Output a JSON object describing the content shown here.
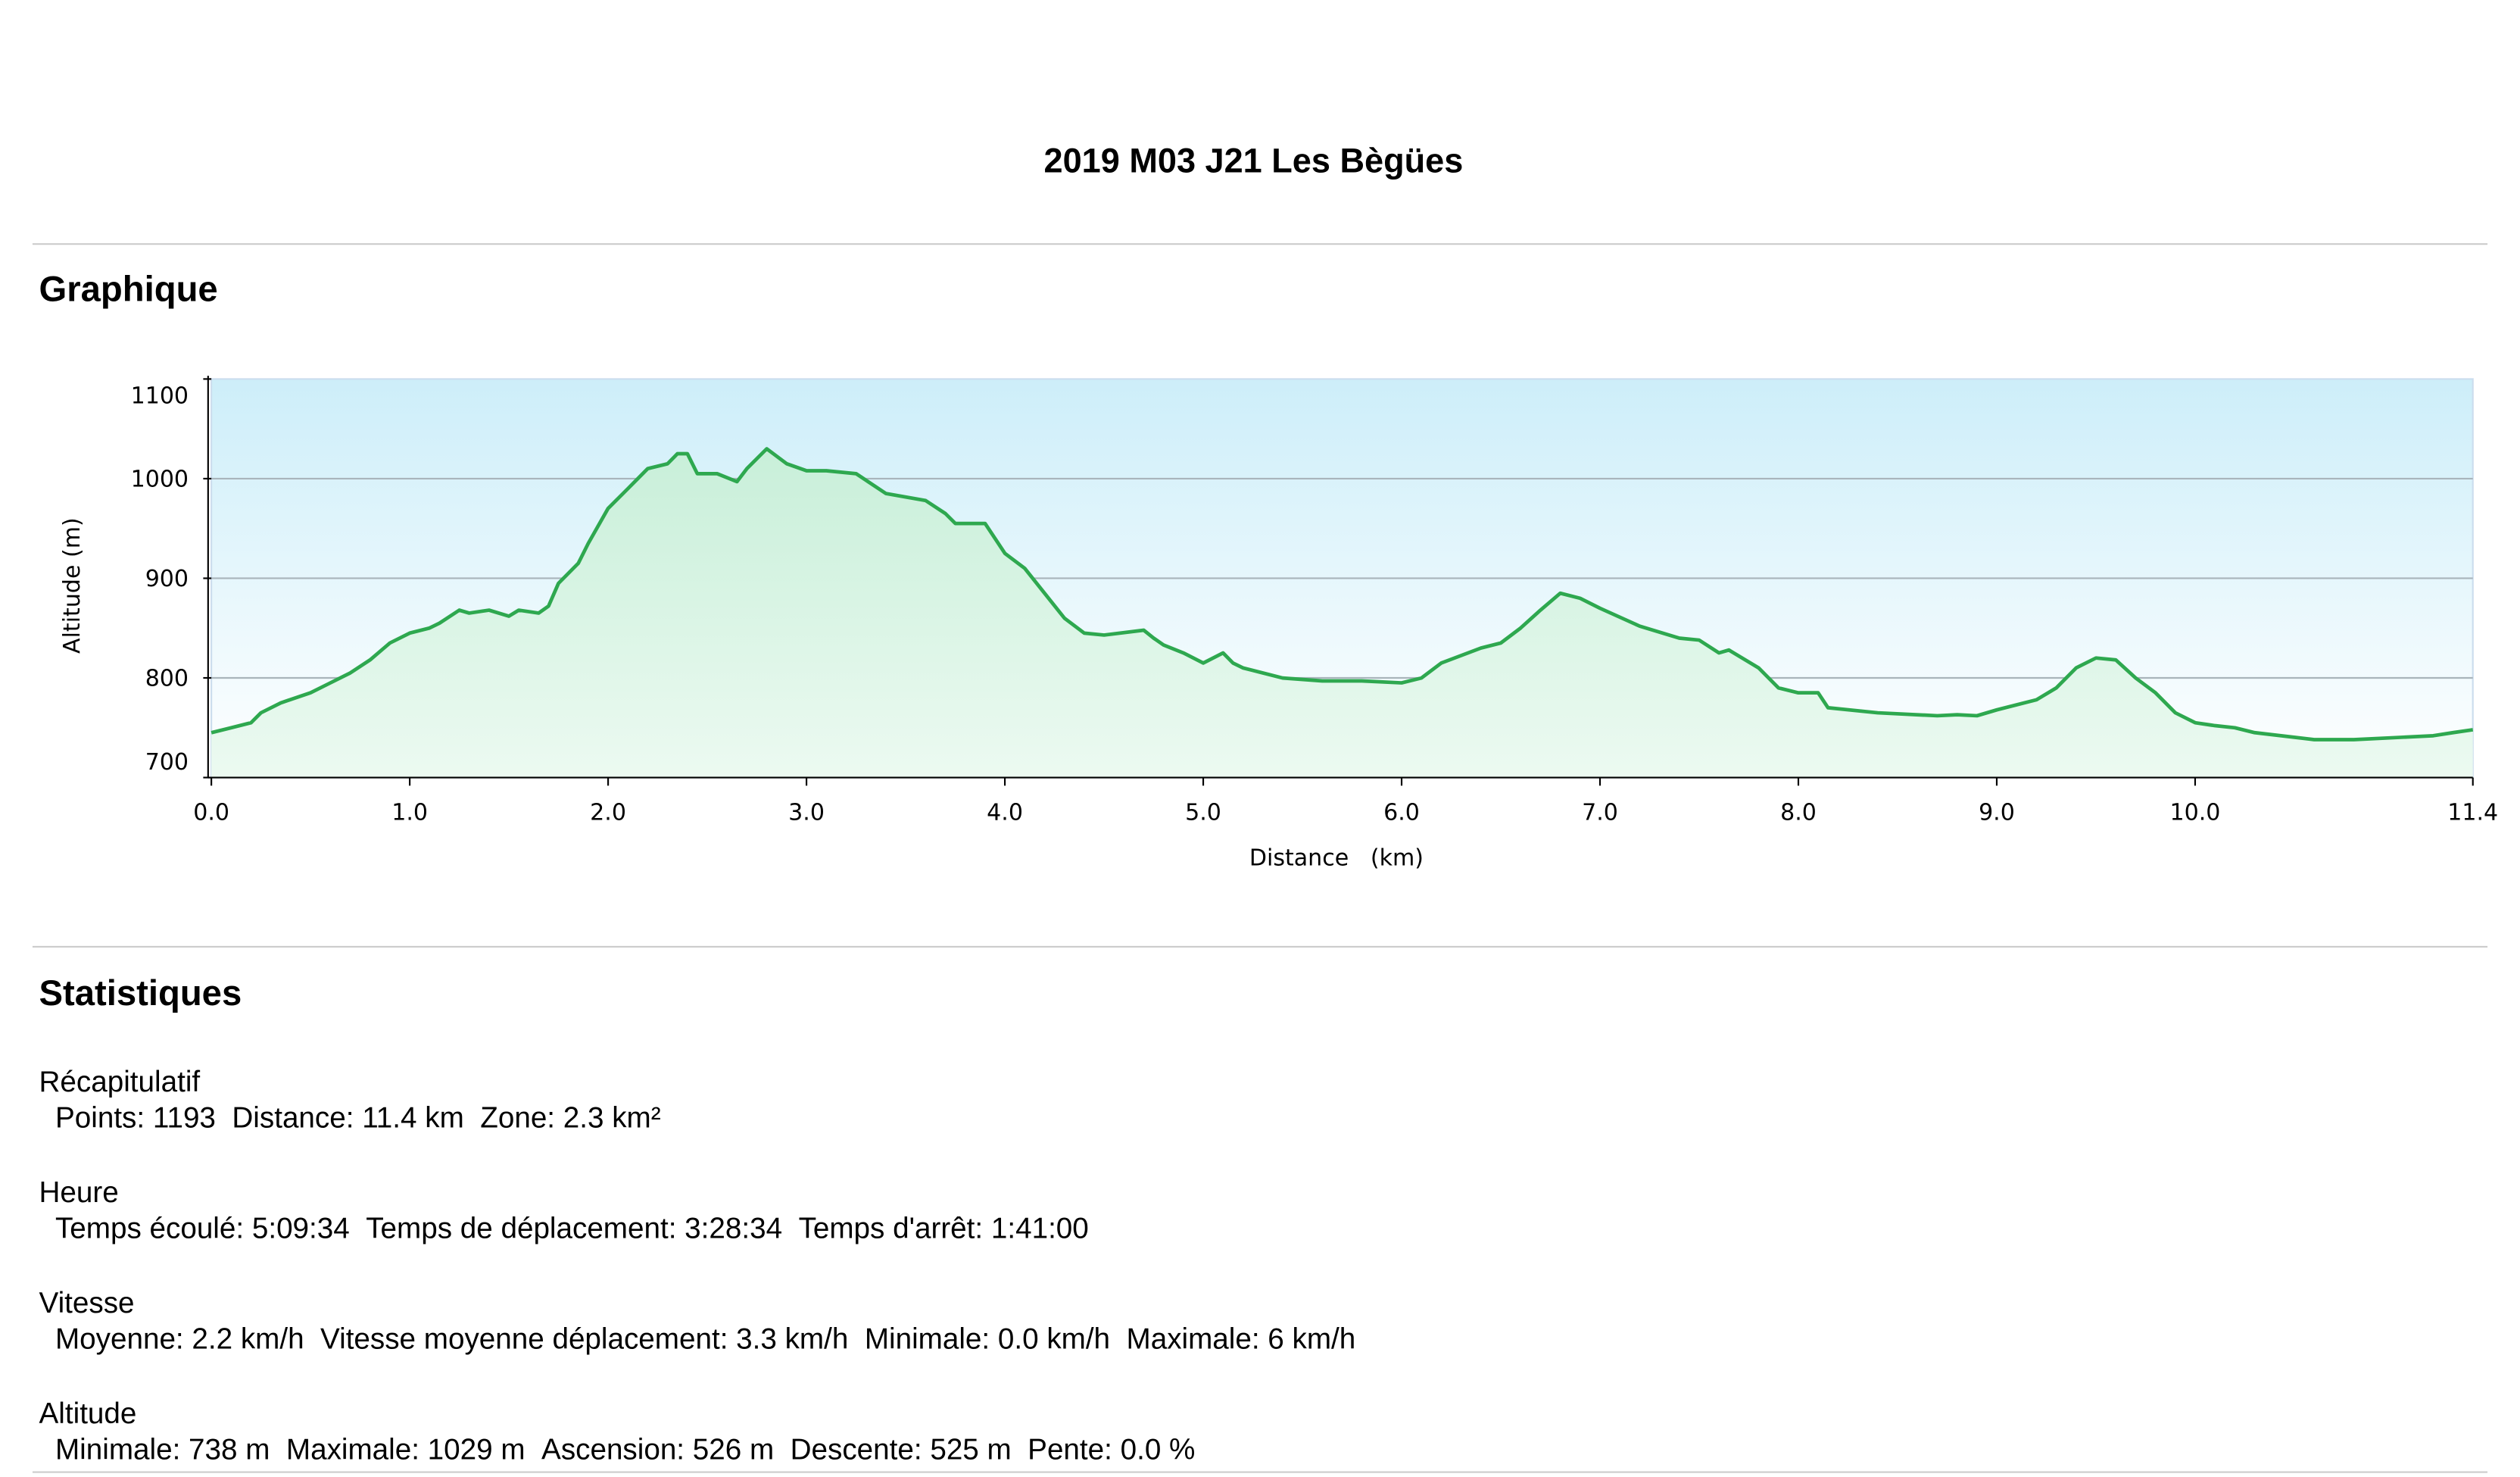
{
  "header": {
    "title": "2019 M03 J21 Les Bègües"
  },
  "chart_section": {
    "heading": "Graphique"
  },
  "chart_data": {
    "type": "area",
    "x_label": "Distance   (km)",
    "y_label": "Altitude (m)",
    "color": "#2ea84f",
    "grid": true,
    "xlim": [
      0,
      11.4
    ],
    "ylim": [
      700,
      1100
    ],
    "xticks": [
      {
        "value": 0,
        "label": "0.0"
      },
      {
        "value": 1,
        "label": "1.0"
      },
      {
        "value": 2,
        "label": "2.0"
      },
      {
        "value": 3,
        "label": "3.0"
      },
      {
        "value": 4,
        "label": "4.0"
      },
      {
        "value": 5,
        "label": "5.0"
      },
      {
        "value": 6,
        "label": "6.0"
      },
      {
        "value": 7,
        "label": "7.0"
      },
      {
        "value": 8,
        "label": "8.0"
      },
      {
        "value": 9,
        "label": "9.0"
      },
      {
        "value": 10,
        "label": "10.0"
      },
      {
        "value": 11.4,
        "label": "11.4"
      }
    ],
    "yticks": [
      700,
      800,
      900,
      1000,
      1100
    ],
    "x": [
      0,
      0.1,
      0.2,
      0.25,
      0.35,
      0.5,
      0.6,
      0.7,
      0.8,
      0.9,
      1.0,
      1.1,
      1.15,
      1.25,
      1.3,
      1.4,
      1.5,
      1.55,
      1.65,
      1.7,
      1.75,
      1.85,
      1.9,
      2.0,
      2.1,
      2.2,
      2.3,
      2.35,
      2.4,
      2.45,
      2.55,
      2.65,
      2.7,
      2.8,
      2.9,
      3.0,
      3.1,
      3.25,
      3.4,
      3.6,
      3.7,
      3.75,
      3.9,
      4.0,
      4.1,
      4.2,
      4.3,
      4.4,
      4.5,
      4.7,
      4.75,
      4.8,
      4.9,
      5.0,
      5.1,
      5.15,
      5.2,
      5.4,
      5.6,
      5.8,
      6.0,
      6.1,
      6.2,
      6.4,
      6.5,
      6.6,
      6.7,
      6.8,
      6.9,
      7.0,
      7.2,
      7.4,
      7.5,
      7.6,
      7.65,
      7.8,
      7.9,
      8.0,
      8.1,
      8.15,
      8.4,
      8.7,
      8.8,
      8.9,
      9.0,
      9.2,
      9.3,
      9.4,
      9.5,
      9.6,
      9.7,
      9.8,
      9.9,
      10.0,
      10.1,
      10.2,
      10.3,
      10.6,
      10.8,
      11.0,
      11.2,
      11.3,
      11.4
    ],
    "values": [
      745,
      750,
      755,
      765,
      775,
      785,
      795,
      805,
      818,
      835,
      845,
      850,
      855,
      868,
      865,
      868,
      862,
      868,
      865,
      872,
      895,
      915,
      935,
      970,
      990,
      1010,
      1015,
      1025,
      1025,
      1005,
      1005,
      997,
      1010,
      1030,
      1015,
      1008,
      1008,
      1005,
      985,
      978,
      965,
      955,
      955,
      925,
      910,
      885,
      860,
      845,
      843,
      848,
      840,
      833,
      825,
      815,
      825,
      815,
      810,
      800,
      797,
      797,
      795,
      800,
      815,
      830,
      835,
      850,
      868,
      885,
      880,
      870,
      852,
      840,
      838,
      825,
      828,
      810,
      790,
      785,
      785,
      770,
      765,
      762,
      763,
      762,
      768,
      778,
      790,
      810,
      820,
      818,
      800,
      785,
      765,
      755,
      752,
      750,
      745,
      738,
      738,
      740,
      742,
      745,
      748
    ]
  },
  "stats": {
    "heading": "Statistiques",
    "groups": [
      {
        "label": "Récapitulatif",
        "items": [
          "Points: 1193",
          "Distance: 11.4 km",
          "Zone: 2.3 km²"
        ]
      },
      {
        "label": "Heure",
        "items": [
          "Temps écoulé: 5:09:34",
          "Temps de déplacement: 3:28:34",
          "Temps d'arrêt: 1:41:00"
        ]
      },
      {
        "label": "Vitesse",
        "items": [
          "Moyenne: 2.2 km/h",
          "Vitesse moyenne déplacement: 3.3 km/h",
          "Minimale: 0.0 km/h",
          "Maximale: 6 km/h"
        ]
      },
      {
        "label": "Altitude",
        "items": [
          "Minimale: 738 m",
          "Maximale: 1029 m",
          "Ascension: 526 m",
          "Descente: 525 m",
          "Pente: 0.0 %"
        ]
      }
    ]
  }
}
